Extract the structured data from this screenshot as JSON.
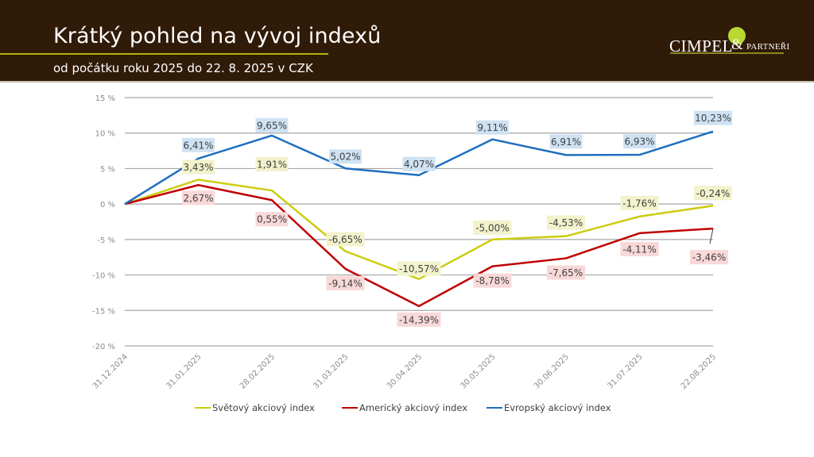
{
  "header": {
    "title": "Krátký pohled na vývoj indexů",
    "subtitle": "od počátku roku 2025 do 22. 8. 2025 v CZK",
    "logo": {
      "main": "CIMPEL",
      "amp": "&",
      "sub": "PARTNEŘI",
      "icon": "leaf-logo-icon"
    }
  },
  "chart_data": {
    "type": "line",
    "title": "Krátký pohled na vývoj indexů",
    "subtitle": "od počátku roku 2025 do 22. 8. 2025 v CZK",
    "xlabel": "",
    "ylabel": "",
    "categories": [
      "31.12.2024",
      "31.01.2025",
      "28.02.2025",
      "31.03.2025",
      "30.04.2025",
      "30.05.2025",
      "30.06.2025",
      "31.07.2025",
      "22.08.2025"
    ],
    "ylim": [
      -20,
      15
    ],
    "yticks": [
      15,
      10,
      5,
      0,
      -5,
      -10,
      -15,
      -20
    ],
    "ytick_labels": [
      "15 %",
      "10 %",
      "5 %",
      "0 %",
      "-5 %",
      "-10 %",
      "-15 %",
      "-20 %"
    ],
    "grid": true,
    "legend_position": "bottom",
    "series": [
      {
        "name": "Světový akciový index",
        "color": "#cccc10",
        "label_bg": "#f2f2cc",
        "values": [
          0,
          3.43,
          1.91,
          -6.65,
          -10.57,
          -5.0,
          -4.53,
          -1.76,
          -0.24
        ],
        "labels": [
          "",
          "3,43%",
          "1,91%",
          "-6,65%",
          "-10,57%",
          "-5,00%",
          "-4,53%",
          "-1,76%",
          "-0,24%"
        ]
      },
      {
        "name": "Americký akciový index",
        "color": "#c00000",
        "label_bg": "#f8d8d8",
        "values": [
          0,
          2.67,
          0.55,
          -9.14,
          -14.39,
          -8.78,
          -7.65,
          -4.11,
          -3.46
        ],
        "labels": [
          "",
          "2,67%",
          "0,55%",
          "-9,14%",
          "-14,39%",
          "-8,78%",
          "-7,65%",
          "-4,11%",
          "-3,46%"
        ]
      },
      {
        "name": "Evropský akciový index",
        "color": "#1f6fbf",
        "label_bg": "#cfe2f3",
        "values": [
          0,
          6.41,
          9.65,
          5.02,
          4.07,
          9.11,
          6.91,
          6.93,
          10.23
        ],
        "labels": [
          "",
          "6,41%",
          "9,65%",
          "5,02%",
          "4,07%",
          "9,11%",
          "6,91%",
          "6,93%",
          "10,23%"
        ]
      }
    ]
  }
}
